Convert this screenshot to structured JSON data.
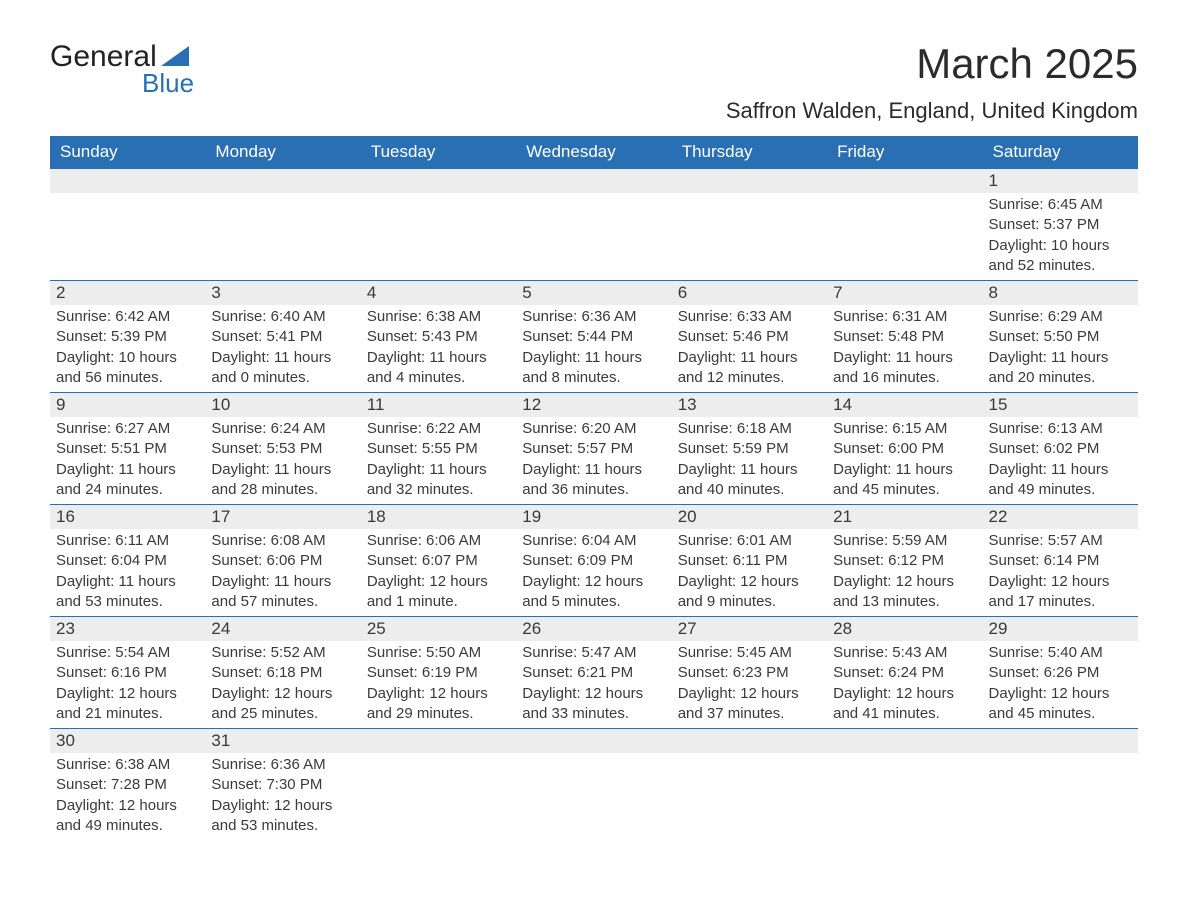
{
  "logo": {
    "text_top": "General",
    "text_bottom": "Blue",
    "triangle_color": "#2a6fb3"
  },
  "title": "March 2025",
  "location": "Saffron Walden, England, United Kingdom",
  "colors": {
    "header_bg": "#2a6fb3",
    "header_fg": "#ffffff",
    "daynum_bg": "#ededed",
    "row_border": "#2a6fb3",
    "text": "#3a3a3a",
    "page_bg": "#ffffff"
  },
  "day_headers": [
    "Sunday",
    "Monday",
    "Tuesday",
    "Wednesday",
    "Thursday",
    "Friday",
    "Saturday"
  ],
  "weeks": [
    [
      {
        "day": "",
        "sunrise": "",
        "sunset": "",
        "daylight": ""
      },
      {
        "day": "",
        "sunrise": "",
        "sunset": "",
        "daylight": ""
      },
      {
        "day": "",
        "sunrise": "",
        "sunset": "",
        "daylight": ""
      },
      {
        "day": "",
        "sunrise": "",
        "sunset": "",
        "daylight": ""
      },
      {
        "day": "",
        "sunrise": "",
        "sunset": "",
        "daylight": ""
      },
      {
        "day": "",
        "sunrise": "",
        "sunset": "",
        "daylight": ""
      },
      {
        "day": "1",
        "sunrise": "6:45 AM",
        "sunset": "5:37 PM",
        "daylight": "10 hours and 52 minutes."
      }
    ],
    [
      {
        "day": "2",
        "sunrise": "6:42 AM",
        "sunset": "5:39 PM",
        "daylight": "10 hours and 56 minutes."
      },
      {
        "day": "3",
        "sunrise": "6:40 AM",
        "sunset": "5:41 PM",
        "daylight": "11 hours and 0 minutes."
      },
      {
        "day": "4",
        "sunrise": "6:38 AM",
        "sunset": "5:43 PM",
        "daylight": "11 hours and 4 minutes."
      },
      {
        "day": "5",
        "sunrise": "6:36 AM",
        "sunset": "5:44 PM",
        "daylight": "11 hours and 8 minutes."
      },
      {
        "day": "6",
        "sunrise": "6:33 AM",
        "sunset": "5:46 PM",
        "daylight": "11 hours and 12 minutes."
      },
      {
        "day": "7",
        "sunrise": "6:31 AM",
        "sunset": "5:48 PM",
        "daylight": "11 hours and 16 minutes."
      },
      {
        "day": "8",
        "sunrise": "6:29 AM",
        "sunset": "5:50 PM",
        "daylight": "11 hours and 20 minutes."
      }
    ],
    [
      {
        "day": "9",
        "sunrise": "6:27 AM",
        "sunset": "5:51 PM",
        "daylight": "11 hours and 24 minutes."
      },
      {
        "day": "10",
        "sunrise": "6:24 AM",
        "sunset": "5:53 PM",
        "daylight": "11 hours and 28 minutes."
      },
      {
        "day": "11",
        "sunrise": "6:22 AM",
        "sunset": "5:55 PM",
        "daylight": "11 hours and 32 minutes."
      },
      {
        "day": "12",
        "sunrise": "6:20 AM",
        "sunset": "5:57 PM",
        "daylight": "11 hours and 36 minutes."
      },
      {
        "day": "13",
        "sunrise": "6:18 AM",
        "sunset": "5:59 PM",
        "daylight": "11 hours and 40 minutes."
      },
      {
        "day": "14",
        "sunrise": "6:15 AM",
        "sunset": "6:00 PM",
        "daylight": "11 hours and 45 minutes."
      },
      {
        "day": "15",
        "sunrise": "6:13 AM",
        "sunset": "6:02 PM",
        "daylight": "11 hours and 49 minutes."
      }
    ],
    [
      {
        "day": "16",
        "sunrise": "6:11 AM",
        "sunset": "6:04 PM",
        "daylight": "11 hours and 53 minutes."
      },
      {
        "day": "17",
        "sunrise": "6:08 AM",
        "sunset": "6:06 PM",
        "daylight": "11 hours and 57 minutes."
      },
      {
        "day": "18",
        "sunrise": "6:06 AM",
        "sunset": "6:07 PM",
        "daylight": "12 hours and 1 minute."
      },
      {
        "day": "19",
        "sunrise": "6:04 AM",
        "sunset": "6:09 PM",
        "daylight": "12 hours and 5 minutes."
      },
      {
        "day": "20",
        "sunrise": "6:01 AM",
        "sunset": "6:11 PM",
        "daylight": "12 hours and 9 minutes."
      },
      {
        "day": "21",
        "sunrise": "5:59 AM",
        "sunset": "6:12 PM",
        "daylight": "12 hours and 13 minutes."
      },
      {
        "day": "22",
        "sunrise": "5:57 AM",
        "sunset": "6:14 PM",
        "daylight": "12 hours and 17 minutes."
      }
    ],
    [
      {
        "day": "23",
        "sunrise": "5:54 AM",
        "sunset": "6:16 PM",
        "daylight": "12 hours and 21 minutes."
      },
      {
        "day": "24",
        "sunrise": "5:52 AM",
        "sunset": "6:18 PM",
        "daylight": "12 hours and 25 minutes."
      },
      {
        "day": "25",
        "sunrise": "5:50 AM",
        "sunset": "6:19 PM",
        "daylight": "12 hours and 29 minutes."
      },
      {
        "day": "26",
        "sunrise": "5:47 AM",
        "sunset": "6:21 PM",
        "daylight": "12 hours and 33 minutes."
      },
      {
        "day": "27",
        "sunrise": "5:45 AM",
        "sunset": "6:23 PM",
        "daylight": "12 hours and 37 minutes."
      },
      {
        "day": "28",
        "sunrise": "5:43 AM",
        "sunset": "6:24 PM",
        "daylight": "12 hours and 41 minutes."
      },
      {
        "day": "29",
        "sunrise": "5:40 AM",
        "sunset": "6:26 PM",
        "daylight": "12 hours and 45 minutes."
      }
    ],
    [
      {
        "day": "30",
        "sunrise": "6:38 AM",
        "sunset": "7:28 PM",
        "daylight": "12 hours and 49 minutes."
      },
      {
        "day": "31",
        "sunrise": "6:36 AM",
        "sunset": "7:30 PM",
        "daylight": "12 hours and 53 minutes."
      },
      {
        "day": "",
        "sunrise": "",
        "sunset": "",
        "daylight": ""
      },
      {
        "day": "",
        "sunrise": "",
        "sunset": "",
        "daylight": ""
      },
      {
        "day": "",
        "sunrise": "",
        "sunset": "",
        "daylight": ""
      },
      {
        "day": "",
        "sunrise": "",
        "sunset": "",
        "daylight": ""
      },
      {
        "day": "",
        "sunrise": "",
        "sunset": "",
        "daylight": ""
      }
    ]
  ],
  "labels": {
    "sunrise": "Sunrise: ",
    "sunset": "Sunset: ",
    "daylight": "Daylight: "
  }
}
